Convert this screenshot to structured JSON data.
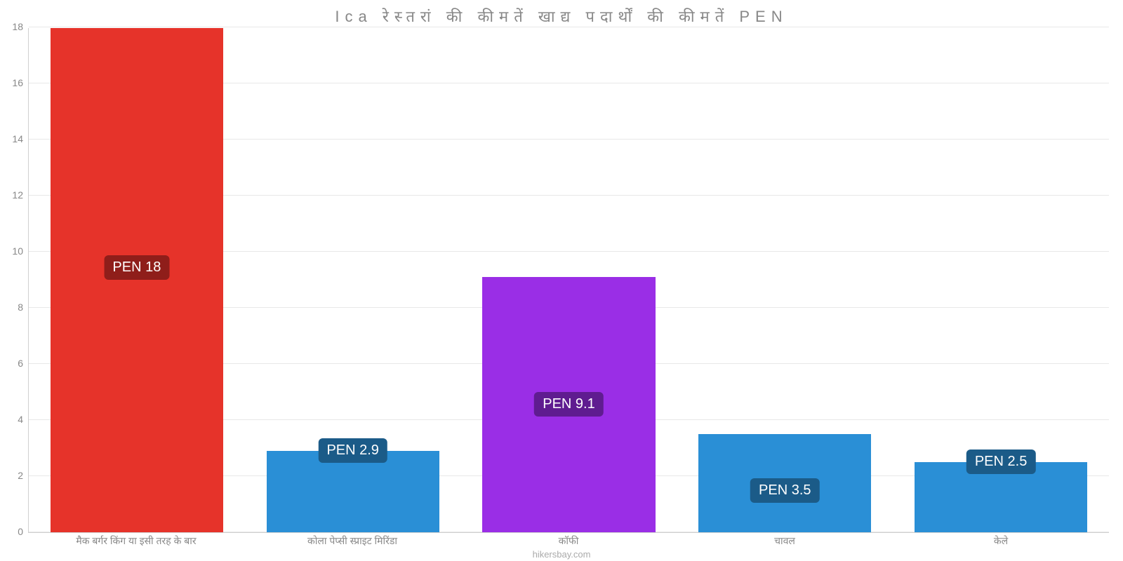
{
  "chart": {
    "type": "bar",
    "title": "Ica रेस्तरां की कीमतें खाद्य पदार्थों की कीमतें PEN",
    "title_fontsize": 22,
    "title_color": "#888888",
    "attribution": "hikersbay.com",
    "attribution_color": "#aaaaaa",
    "background_color": "#ffffff",
    "grid_color": "#e8e8e8",
    "axis_color": "#d0d0d0",
    "ylim": [
      0,
      18
    ],
    "ytick_step": 2,
    "ytick_labels": [
      "0",
      "2",
      "4",
      "6",
      "8",
      "10",
      "12",
      "14",
      "16",
      "18"
    ],
    "y_tick_color": "#888888",
    "y_tick_fontsize": 14,
    "x_tick_color": "#888888",
    "x_tick_fontsize": 14,
    "bar_width_ratio": 0.8,
    "value_label_fontsize": 20,
    "value_label_text_color": "#ffffff",
    "value_label_radius": 6,
    "categories": [
      "मैक बर्गर किंग या इसी तरह के बार",
      "कोला पेप्सी स्प्राइट मिरिंडा",
      "कॉफी",
      "चावल",
      "केले"
    ],
    "values": [
      18,
      2.9,
      9.1,
      3.5,
      2.5
    ],
    "value_labels": [
      "PEN 18",
      "PEN 2.9",
      "PEN 9.1",
      "PEN 3.5",
      "PEN 2.5"
    ],
    "bar_colors": [
      "#e6332a",
      "#2a8fd6",
      "#9a2ee6",
      "#2a8fd6",
      "#2a8fd6"
    ],
    "value_label_bg_colors": [
      "#8f1e1a",
      "#1b5b88",
      "#5f1c90",
      "#1b5b88",
      "#1b5b88"
    ]
  }
}
